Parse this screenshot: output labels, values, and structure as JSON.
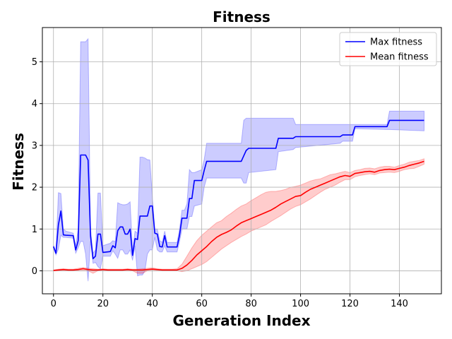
{
  "chart_data": {
    "type": "line",
    "title": "Fitness",
    "xlabel": "Generation Index",
    "ylabel": "Fitness",
    "xlim": [
      -4.5,
      157
    ],
    "ylim": [
      -0.55,
      5.82
    ],
    "xticks": [
      0,
      20,
      40,
      60,
      80,
      100,
      120,
      140
    ],
    "yticks": [
      0,
      1,
      2,
      3,
      4,
      5
    ],
    "grid": true,
    "legend_position": "top-right",
    "series": [
      {
        "name": "Max fitness",
        "color": "#0000ff",
        "band_color": "#0000ff",
        "band_opacity": 0.2,
        "x": [
          0,
          1,
          2,
          3,
          4,
          5,
          8,
          9,
          10,
          11,
          12,
          13,
          14,
          15,
          16,
          17,
          18,
          19,
          20,
          23,
          24,
          25,
          26,
          27,
          28,
          29,
          30,
          31,
          32,
          33,
          34,
          35,
          36,
          37,
          38,
          39,
          40,
          41,
          42,
          43,
          44,
          45,
          46,
          47,
          50,
          51,
          52,
          53,
          54,
          55,
          56,
          57,
          60,
          61,
          62,
          76,
          77,
          78,
          79,
          90,
          91,
          97,
          98,
          116,
          117,
          121,
          122,
          135,
          136,
          150
        ],
        "y": [
          0.58,
          0.42,
          1.1,
          1.43,
          0.86,
          0.85,
          0.84,
          0.5,
          0.72,
          2.77,
          2.77,
          2.77,
          2.65,
          0.83,
          0.29,
          0.35,
          0.88,
          0.88,
          0.44,
          0.46,
          0.6,
          0.55,
          0.96,
          1.05,
          1.05,
          0.88,
          0.88,
          1.0,
          0.37,
          0.77,
          0.75,
          1.31,
          1.31,
          1.31,
          1.31,
          1.55,
          1.55,
          0.9,
          0.88,
          0.58,
          0.57,
          0.84,
          0.57,
          0.57,
          0.57,
          0.85,
          1.26,
          1.26,
          1.26,
          1.73,
          1.73,
          2.16,
          2.16,
          2.4,
          2.62,
          2.62,
          2.75,
          2.88,
          2.93,
          2.93,
          3.17,
          3.17,
          3.21,
          3.21,
          3.25,
          3.25,
          3.45,
          3.45,
          3.6,
          3.6
        ],
        "upper": [
          0.62,
          0.46,
          1.87,
          1.85,
          1.0,
          0.95,
          0.9,
          0.6,
          1.0,
          5.48,
          5.48,
          5.48,
          5.55,
          1.0,
          0.42,
          0.5,
          1.86,
          1.86,
          0.6,
          0.66,
          0.72,
          0.7,
          1.63,
          1.6,
          1.58,
          1.58,
          1.6,
          1.65,
          0.5,
          0.95,
          0.9,
          2.72,
          2.72,
          2.7,
          2.66,
          2.65,
          1.77,
          1.0,
          1.0,
          0.72,
          0.68,
          0.95,
          0.68,
          0.68,
          0.68,
          1.0,
          1.45,
          1.45,
          1.6,
          2.42,
          2.35,
          2.35,
          2.42,
          2.66,
          3.05,
          3.05,
          3.6,
          3.65,
          3.65,
          3.65,
          3.65,
          3.65,
          3.5,
          3.5,
          3.5,
          3.5,
          3.5,
          3.5,
          3.82,
          3.82
        ],
        "lower": [
          0.55,
          0.38,
          0.52,
          0.85,
          0.8,
          0.8,
          0.78,
          0.42,
          0.55,
          0.7,
          0.7,
          0.4,
          -0.25,
          0.72,
          0.18,
          0.2,
          0.1,
          0.05,
          0.35,
          0.35,
          0.48,
          0.4,
          0.3,
          0.5,
          0.5,
          0.4,
          0.4,
          0.5,
          0.25,
          0.6,
          -0.12,
          -0.1,
          -0.1,
          0.0,
          0.4,
          0.5,
          0.5,
          0.8,
          0.5,
          0.45,
          0.45,
          0.6,
          0.45,
          0.45,
          0.45,
          0.7,
          1.0,
          1.0,
          1.0,
          1.3,
          1.3,
          1.55,
          1.6,
          2.0,
          2.22,
          2.22,
          2.1,
          2.1,
          2.35,
          2.42,
          2.85,
          2.9,
          2.95,
          3.05,
          3.1,
          3.1,
          3.4,
          3.38,
          3.38,
          3.35
        ]
      },
      {
        "name": "Mean fitness",
        "color": "#ff0000",
        "band_color": "#ff0000",
        "band_opacity": 0.2,
        "x": [
          0,
          2,
          4,
          6,
          8,
          10,
          12,
          14,
          16,
          18,
          20,
          22,
          24,
          26,
          28,
          30,
          32,
          34,
          36,
          38,
          40,
          42,
          44,
          46,
          48,
          50,
          52,
          54,
          56,
          58,
          60,
          62,
          64,
          66,
          68,
          70,
          72,
          74,
          76,
          78,
          80,
          82,
          84,
          86,
          88,
          90,
          92,
          94,
          96,
          98,
          100,
          102,
          104,
          106,
          108,
          110,
          112,
          114,
          116,
          118,
          120,
          122,
          124,
          126,
          128,
          130,
          132,
          134,
          136,
          138,
          140,
          142,
          144,
          146,
          148,
          150
        ],
        "y": [
          0.01,
          0.02,
          0.03,
          0.02,
          0.02,
          0.03,
          0.05,
          0.03,
          0.02,
          0.02,
          0.03,
          0.02,
          0.02,
          0.02,
          0.02,
          0.03,
          0.02,
          0.02,
          0.02,
          0.03,
          0.04,
          0.03,
          0.02,
          0.02,
          0.02,
          0.02,
          0.06,
          0.14,
          0.25,
          0.38,
          0.48,
          0.58,
          0.7,
          0.8,
          0.87,
          0.92,
          0.98,
          1.07,
          1.15,
          1.2,
          1.25,
          1.3,
          1.35,
          1.4,
          1.45,
          1.52,
          1.6,
          1.66,
          1.72,
          1.78,
          1.8,
          1.88,
          1.95,
          2.0,
          2.05,
          2.1,
          2.15,
          2.2,
          2.25,
          2.28,
          2.26,
          2.33,
          2.35,
          2.37,
          2.38,
          2.36,
          2.4,
          2.42,
          2.43,
          2.42,
          2.45,
          2.48,
          2.52,
          2.55,
          2.58,
          2.62
        ],
        "upper": [
          0.02,
          0.04,
          0.05,
          0.04,
          0.04,
          0.06,
          0.08,
          0.06,
          0.05,
          0.04,
          0.05,
          0.04,
          0.04,
          0.04,
          0.04,
          0.05,
          0.04,
          0.04,
          0.05,
          0.06,
          0.07,
          0.05,
          0.04,
          0.04,
          0.04,
          0.05,
          0.16,
          0.35,
          0.55,
          0.72,
          0.85,
          0.95,
          1.05,
          1.15,
          1.2,
          1.3,
          1.38,
          1.47,
          1.55,
          1.6,
          1.68,
          1.75,
          1.82,
          1.88,
          1.9,
          1.9,
          1.92,
          1.95,
          2.0,
          2.02,
          2.05,
          2.1,
          2.15,
          2.18,
          2.2,
          2.25,
          2.3,
          2.32,
          2.35,
          2.38,
          2.35,
          2.4,
          2.42,
          2.45,
          2.46,
          2.44,
          2.48,
          2.5,
          2.5,
          2.48,
          2.52,
          2.55,
          2.6,
          2.62,
          2.64,
          2.68
        ],
        "lower": [
          0.0,
          0.0,
          0.0,
          0.0,
          0.0,
          0.0,
          0.0,
          0.0,
          -0.06,
          0.0,
          0.0,
          0.0,
          0.0,
          0.0,
          0.0,
          0.0,
          0.0,
          -0.06,
          -0.06,
          0.0,
          0.0,
          0.0,
          0.0,
          0.0,
          0.0,
          0.0,
          -0.02,
          0.0,
          0.05,
          0.1,
          0.15,
          0.22,
          0.32,
          0.42,
          0.52,
          0.6,
          0.68,
          0.75,
          0.82,
          0.88,
          0.95,
          1.0,
          1.05,
          1.1,
          1.18,
          1.25,
          1.32,
          1.4,
          1.48,
          1.54,
          1.58,
          1.65,
          1.72,
          1.8,
          1.88,
          1.95,
          2.0,
          2.05,
          2.12,
          2.18,
          2.18,
          2.25,
          2.28,
          2.3,
          2.32,
          2.3,
          2.34,
          2.35,
          2.36,
          2.35,
          2.38,
          2.42,
          2.44,
          2.45,
          2.5,
          2.55
        ]
      }
    ]
  }
}
